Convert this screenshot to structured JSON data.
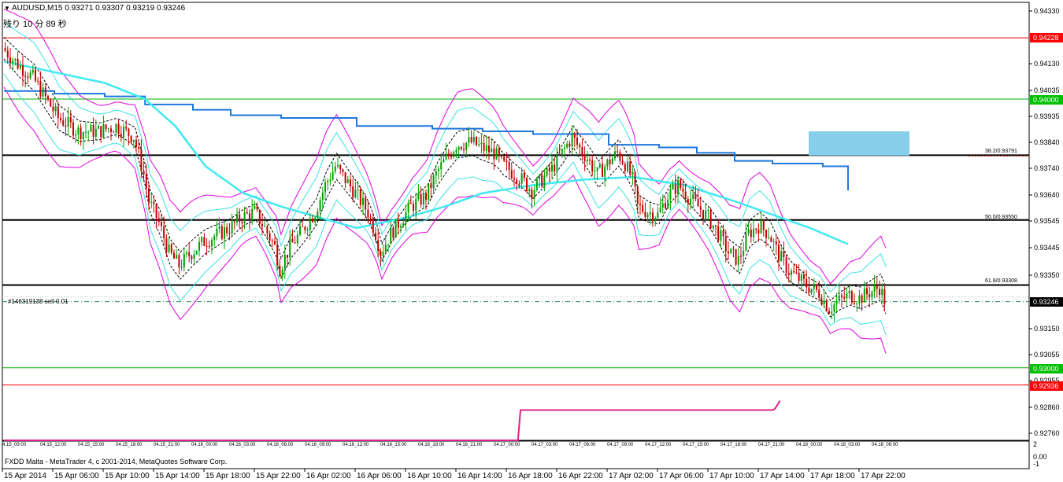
{
  "header": {
    "title": "AUDUSD,M15  0.93271 0.93307 0.93219 0.93246",
    "countdown": "残り 10 分 89 秒"
  },
  "order_label": "#146319138 sell 0.01",
  "footer": {
    "copyright": "FXDD Malta - MetaTrader 4, c 2001-2014, MetaQuotes Software Corp."
  },
  "indicator_axis": {
    "top": "2",
    "mid": "0.00",
    "bottom": "-1"
  },
  "price_axis": {
    "labels": [
      "0.94330",
      "0.94130",
      "0.94035",
      "0.93935",
      "0.93840",
      "0.93740",
      "0.93640",
      "0.93545",
      "0.93445",
      "0.93350",
      "0.93150",
      "0.93055",
      "0.92955",
      "0.92860",
      "0.92760"
    ]
  },
  "price_markers": [
    {
      "name": "red-level-top",
      "value": "0.94228",
      "color": "#ff0000"
    },
    {
      "name": "green-level-top",
      "value": "0.94000",
      "color": "#00c000"
    },
    {
      "name": "current-price",
      "value": "0.93246",
      "color": "#000000"
    },
    {
      "name": "green-level-bottom",
      "value": "0.93000",
      "color": "#00c000"
    },
    {
      "name": "red-level-bottom",
      "value": "0.92936",
      "color": "#ff0000"
    }
  ],
  "fib_labels": [
    {
      "name": "fib-382",
      "text": "38.2/0.93791"
    },
    {
      "name": "fib-500",
      "text": "50.0/0.93550"
    },
    {
      "name": "fib-618",
      "text": "61.8/0.93308"
    }
  ],
  "time_axis_small": [
    "4.15_09:00",
    "04.15_12:00",
    "04.15_15:00",
    "04.15_18:00",
    "04.15_21:00",
    "04.16_00:00",
    "04.16_03:00",
    "04.16_06:00",
    "04.16_09:00",
    "04.16_12:00",
    "04.16_15:00",
    "04.16_18:00",
    "04.16_21:00",
    "04.17_00:00",
    "04.17_03:00",
    "04.17_06:00",
    "04.17_09:00",
    "04.17_12:00",
    "04.17_15:00",
    "04.17_18:00",
    "04.17_21:00",
    "04.18_00:00",
    "04.18_03:00",
    "04.18_06:00"
  ],
  "time_axis_dates": [
    "15 Apr 2014",
    "15 Apr 06:00",
    "15 Apr 10:00",
    "15 Apr 14:00",
    "15 Apr 18:00",
    "15 Apr 22:00",
    "16 Apr 02:00",
    "16 Apr 06:00",
    "16 Apr 10:00",
    "16 Apr 14:00",
    "16 Apr 18:00",
    "16 Apr 22:00",
    "17 Apr 02:00",
    "17 Apr 06:00",
    "17 Apr 10:00",
    "17 Apr 14:00",
    "17 Apr 18:00",
    "17 Apr 22:00"
  ],
  "chart_data": {
    "type": "candlestick",
    "symbol": "AUDUSD",
    "timeframe": "M15",
    "ylim": [
      0.9273,
      0.9436
    ],
    "colors": {
      "up": "#00a000",
      "down": "#c00000",
      "upper_band": "#e000e0",
      "inner_band": "#40e0e0",
      "slow_ma": "#1e78dc",
      "fast_ma": "#40e8f0",
      "fib": "#000000",
      "zone": "#87ceeb",
      "indicator": "#e0208c"
    },
    "close_path": [
      [
        0,
        0.9419
      ],
      [
        6,
        0.9413
      ],
      [
        12,
        0.9408
      ],
      [
        16,
        0.9402
      ],
      [
        22,
        0.9393
      ],
      [
        30,
        0.9388
      ],
      [
        38,
        0.9388
      ],
      [
        45,
        0.939
      ],
      [
        52,
        0.9386
      ],
      [
        56,
        0.9372
      ],
      [
        58,
        0.9362
      ],
      [
        62,
        0.9354
      ],
      [
        66,
        0.9343
      ],
      [
        70,
        0.9338
      ],
      [
        75,
        0.9343
      ],
      [
        80,
        0.9347
      ],
      [
        86,
        0.935
      ],
      [
        90,
        0.9352
      ],
      [
        95,
        0.9356
      ],
      [
        100,
        0.9358
      ],
      [
        104,
        0.9352
      ],
      [
        108,
        0.9345
      ],
      [
        110,
        0.9337
      ],
      [
        114,
        0.9345
      ],
      [
        118,
        0.935
      ],
      [
        124,
        0.9358
      ],
      [
        128,
        0.9368
      ],
      [
        132,
        0.9375
      ],
      [
        136,
        0.937
      ],
      [
        140,
        0.9365
      ],
      [
        145,
        0.9358
      ],
      [
        148,
        0.935
      ],
      [
        150,
        0.9343
      ],
      [
        154,
        0.935
      ],
      [
        158,
        0.9355
      ],
      [
        162,
        0.936
      ],
      [
        168,
        0.9364
      ],
      [
        172,
        0.9372
      ],
      [
        176,
        0.9378
      ],
      [
        180,
        0.9383
      ],
      [
        186,
        0.9384
      ],
      [
        190,
        0.9382
      ],
      [
        195,
        0.938
      ],
      [
        198,
        0.9376
      ],
      [
        202,
        0.9373
      ],
      [
        206,
        0.937
      ],
      [
        210,
        0.9366
      ],
      [
        214,
        0.937
      ],
      [
        218,
        0.9374
      ],
      [
        222,
        0.938
      ],
      [
        226,
        0.9386
      ],
      [
        228,
        0.9383
      ],
      [
        232,
        0.9378
      ],
      [
        236,
        0.9372
      ],
      [
        240,
        0.9376
      ],
      [
        244,
        0.938
      ],
      [
        247,
        0.9376
      ],
      [
        250,
        0.937
      ],
      [
        252,
        0.936
      ],
      [
        256,
        0.9358
      ],
      [
        260,
        0.9357
      ],
      [
        264,
        0.9364
      ],
      [
        268,
        0.9368
      ],
      [
        272,
        0.9364
      ],
      [
        276,
        0.936
      ],
      [
        280,
        0.9356
      ],
      [
        284,
        0.935
      ],
      [
        288,
        0.9343
      ],
      [
        292,
        0.934
      ],
      [
        296,
        0.935
      ],
      [
        300,
        0.9353
      ],
      [
        304,
        0.935
      ],
      [
        308,
        0.9342
      ],
      [
        312,
        0.9336
      ],
      [
        316,
        0.9333
      ],
      [
        320,
        0.933
      ],
      [
        324,
        0.9328
      ],
      [
        328,
        0.9322
      ],
      [
        332,
        0.9325
      ],
      [
        336,
        0.9327
      ],
      [
        340,
        0.9326
      ],
      [
        344,
        0.9328
      ],
      [
        348,
        0.933
      ],
      [
        350,
        0.9325
      ]
    ],
    "fast_ma": [
      [
        0,
        0.9414
      ],
      [
        20,
        0.941
      ],
      [
        40,
        0.9406
      ],
      [
        56,
        0.94
      ],
      [
        68,
        0.939
      ],
      [
        80,
        0.9375
      ],
      [
        95,
        0.9365
      ],
      [
        110,
        0.936
      ],
      [
        125,
        0.9356
      ],
      [
        140,
        0.9352
      ],
      [
        160,
        0.9356
      ],
      [
        175,
        0.936
      ],
      [
        190,
        0.9365
      ],
      [
        210,
        0.9368
      ],
      [
        230,
        0.937
      ],
      [
        250,
        0.9371
      ],
      [
        270,
        0.9368
      ],
      [
        290,
        0.9362
      ],
      [
        305,
        0.9357
      ],
      [
        320,
        0.9352
      ],
      [
        335,
        0.9346
      ]
    ],
    "slow_ma": [
      [
        0,
        0.9403
      ],
      [
        20,
        0.9402
      ],
      [
        40,
        0.9401
      ],
      [
        56,
        0.9398
      ],
      [
        75,
        0.9396
      ],
      [
        90,
        0.9394
      ],
      [
        110,
        0.9393
      ],
      [
        140,
        0.939
      ],
      [
        170,
        0.9389
      ],
      [
        190,
        0.9388
      ],
      [
        210,
        0.9387
      ],
      [
        240,
        0.9383
      ],
      [
        260,
        0.9382
      ],
      [
        275,
        0.938
      ],
      [
        290,
        0.9377
      ],
      [
        305,
        0.9376
      ],
      [
        325,
        0.9375
      ],
      [
        335,
        0.9366
      ]
    ],
    "fibonacci": [
      {
        "level": "38.2",
        "price": 0.93791
      },
      {
        "level": "50.0",
        "price": 0.9355
      },
      {
        "level": "61.8",
        "price": 0.93308
      }
    ],
    "horizontal_levels": [
      {
        "label": "red",
        "price": 0.94228
      },
      {
        "label": "green",
        "price": 0.94
      },
      {
        "label": "green",
        "price": 0.93
      },
      {
        "label": "red",
        "price": 0.92936
      }
    ],
    "current_price": 0.93246,
    "zone": {
      "from_price": 0.9379,
      "to_price": 0.9388
    },
    "indicator": [
      [
        0,
        -1
      ],
      [
        204,
        -1
      ],
      [
        205,
        0.9
      ],
      [
        305,
        0.9
      ],
      [
        306,
        1.0
      ],
      [
        308,
        1.7
      ]
    ]
  }
}
